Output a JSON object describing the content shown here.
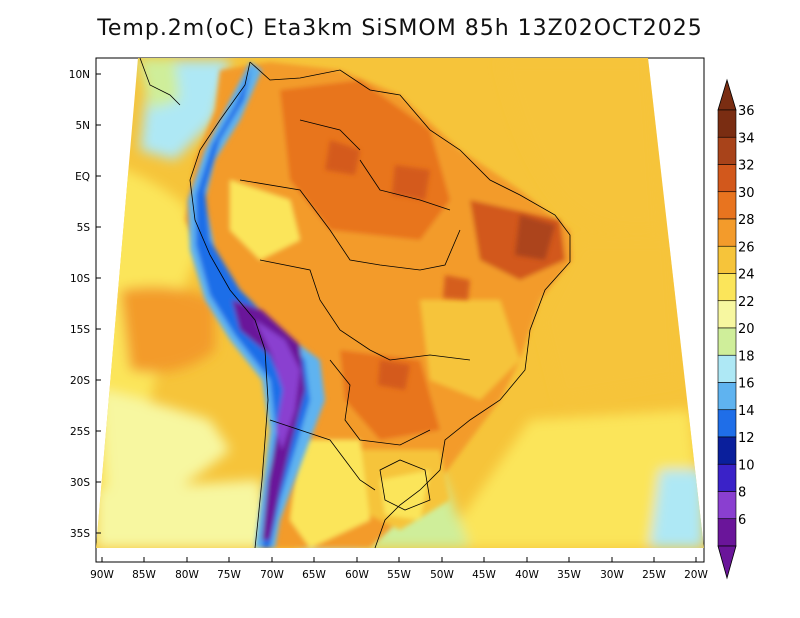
{
  "title": "Temp.2m(oC) Eta3km SiSMOM 85h 13Z02OCT2025",
  "map": {
    "lat_labels": [
      "10N",
      "5N",
      "EQ",
      "5S",
      "10S",
      "15S",
      "20S",
      "25S",
      "30S",
      "35S"
    ],
    "lon_labels": [
      "90W",
      "85W",
      "80W",
      "75W",
      "70W",
      "65W",
      "60W",
      "55W",
      "50W",
      "45W",
      "40W",
      "35W",
      "30W",
      "25W",
      "20W"
    ]
  },
  "colorbar": {
    "labels": [
      "36",
      "34",
      "32",
      "30",
      "28",
      "26",
      "24",
      "22",
      "20",
      "18",
      "16",
      "14",
      "12",
      "10",
      "8",
      "6"
    ],
    "colors": [
      "#7a2d12",
      "#a8431a",
      "#d2581c",
      "#e8741f",
      "#f39b2b",
      "#f6c43a",
      "#fbe55a",
      "#f7f7a0",
      "#cfee9a",
      "#aee8f5",
      "#5fb3f0",
      "#1f6ee8",
      "#0a1f9c",
      "#3a22c8",
      "#8a3fd0",
      "#6a159a"
    ]
  }
}
